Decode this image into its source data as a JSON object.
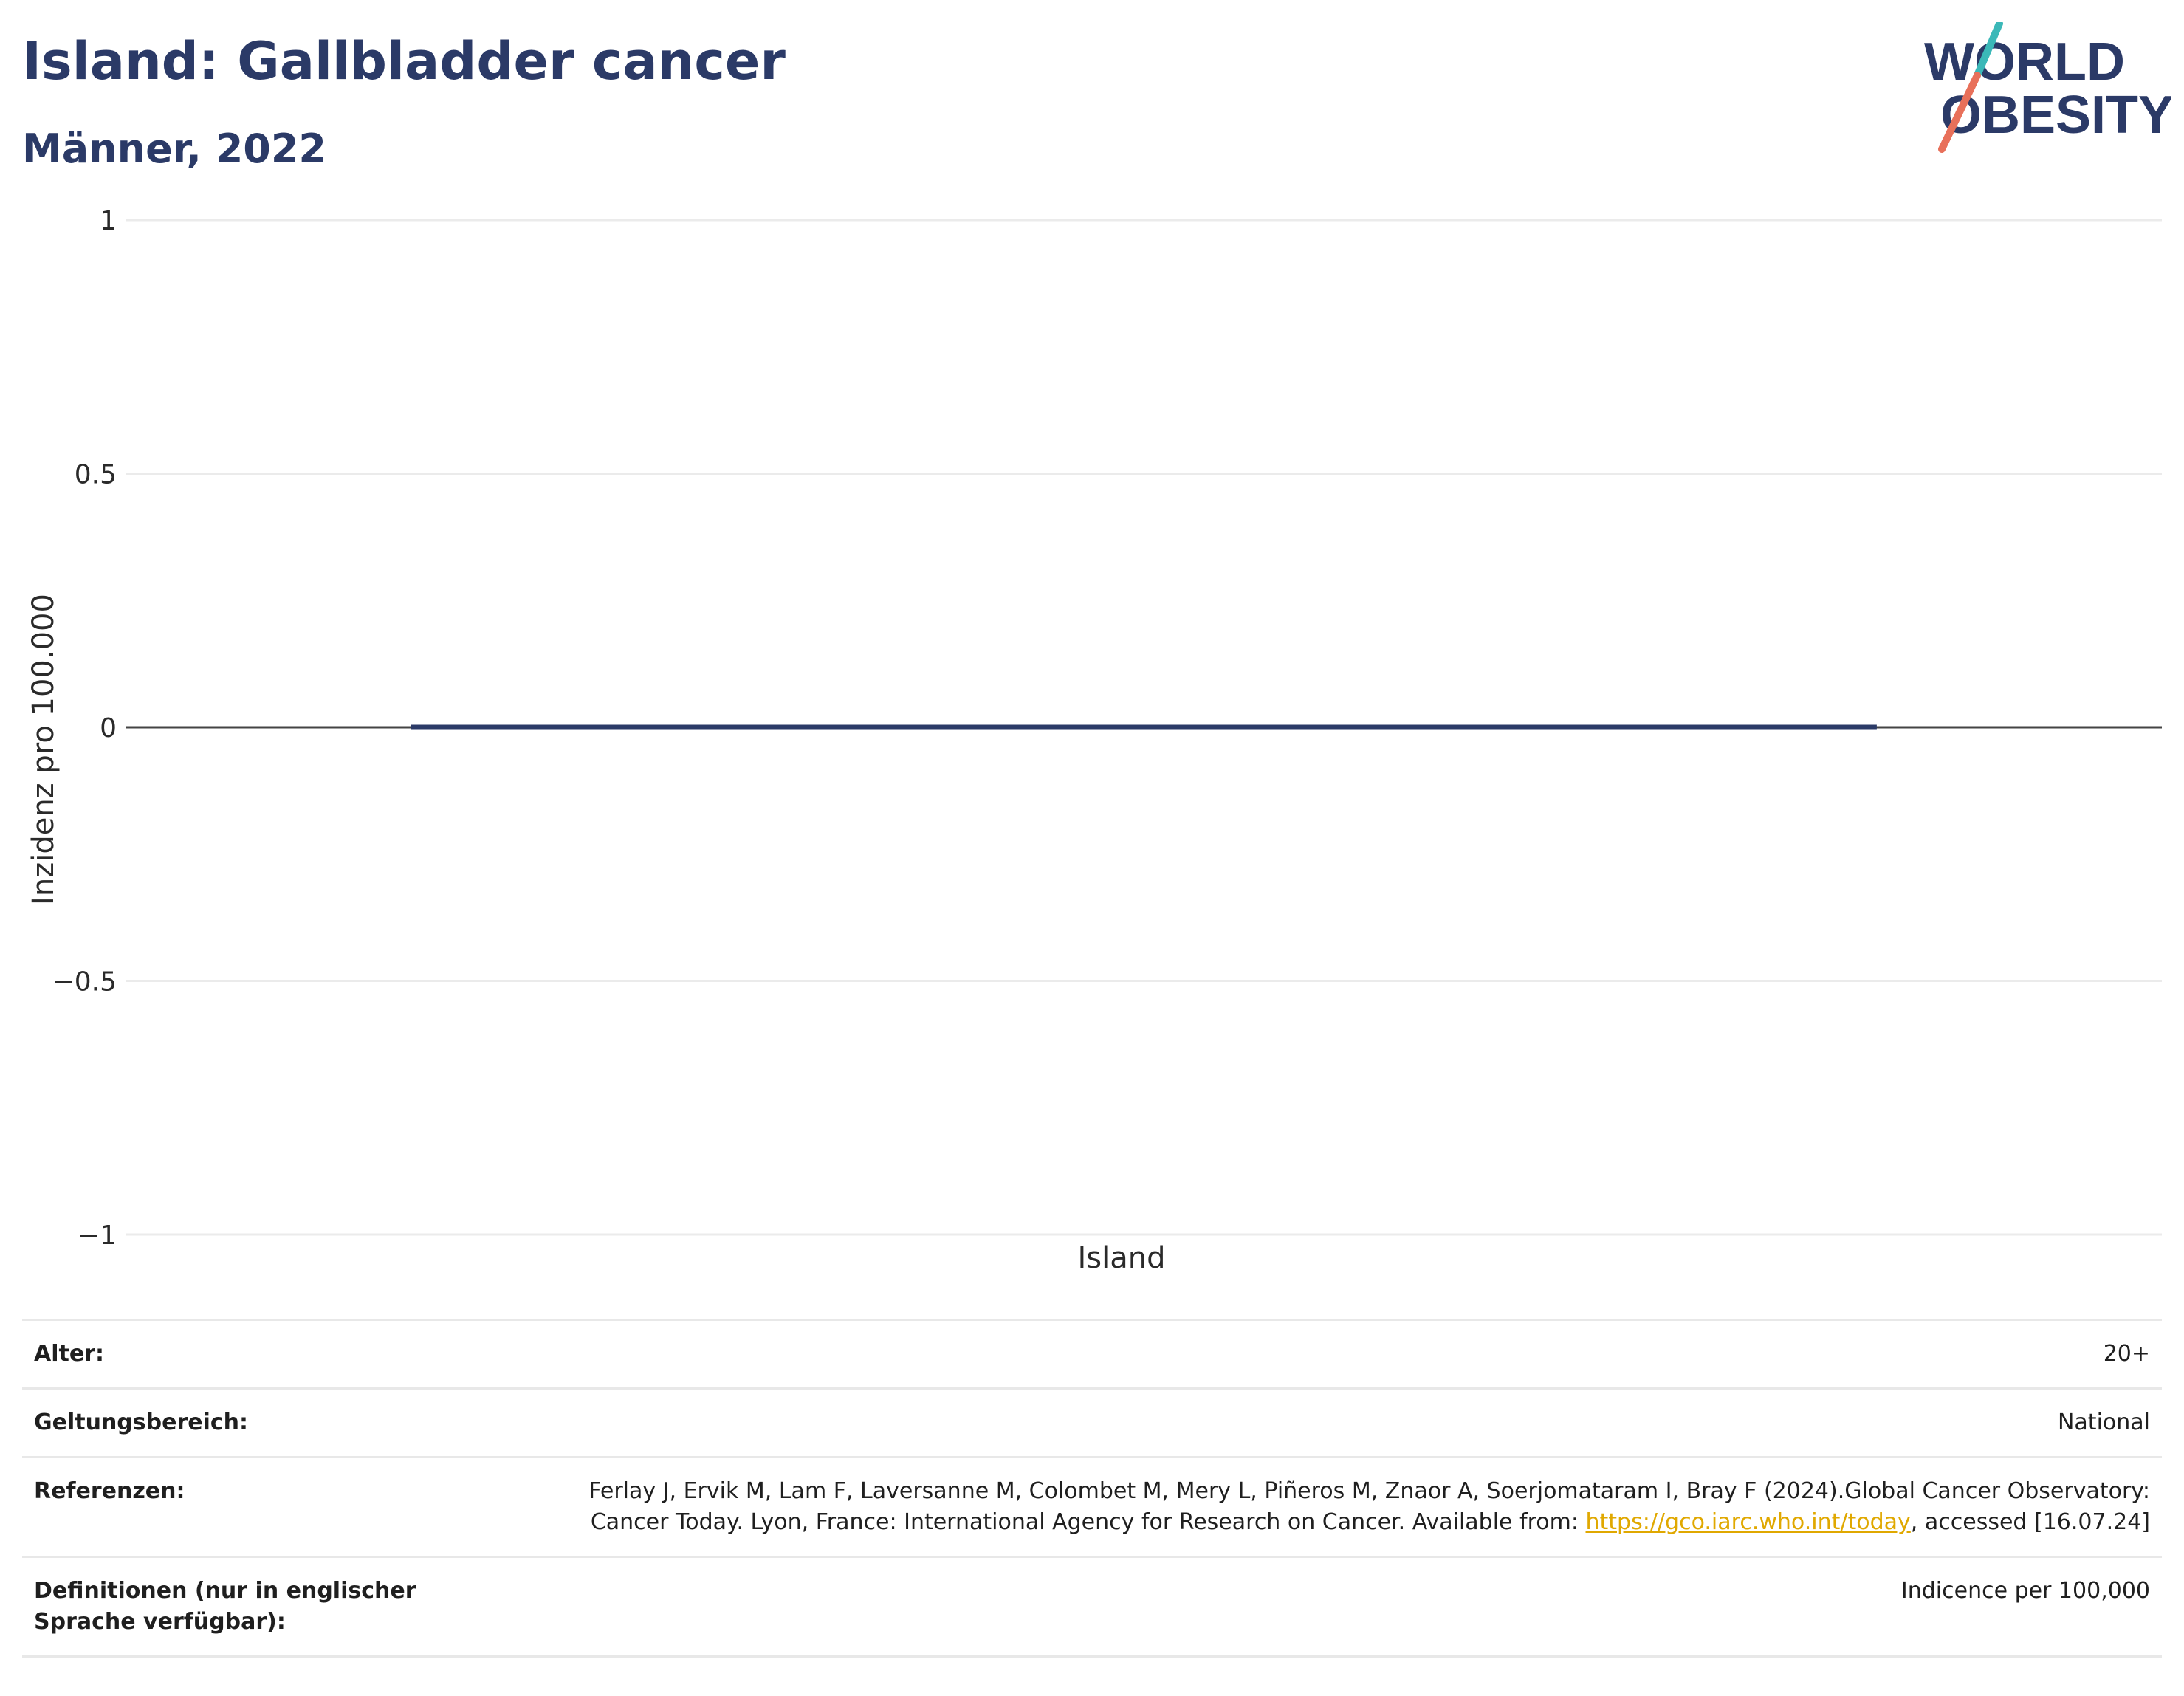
{
  "header": {
    "title": "Island: Gallbladder cancer",
    "subtitle": "Männer, 2022"
  },
  "logo": {
    "line1": "WORLD",
    "line2": "OBESITY",
    "colors": {
      "text": "#2b3a67",
      "slash_top": "#3bb8b8",
      "slash_bottom": "#e8705a"
    }
  },
  "chart_data": {
    "type": "bar",
    "categories": [
      "Island"
    ],
    "series": [
      {
        "values": [
          0
        ]
      }
    ],
    "ylabel": "Inzidenz pro 100.000",
    "xlabel": "",
    "ylim": [
      -1,
      1
    ],
    "yticks": [
      1,
      0.5,
      0,
      -0.5,
      -1
    ],
    "ytick_labels": [
      "1",
      "0.5",
      "0",
      "−0.5",
      "−1"
    ],
    "grid": true,
    "bar_color": "#2b3a67"
  },
  "meta": {
    "rows": [
      {
        "label": "Alter:",
        "value": "20+"
      },
      {
        "label": "Geltungsbereich:",
        "value": "National"
      },
      {
        "label": "Referenzen:",
        "value_before": "Ferlay J, Ervik M, Lam F, Laversanne M, Colombet M, Mery L, Piñeros M, Znaor A, Soerjomataram I, Bray F (2024).Global Cancer Observatory: Cancer Today. Lyon, France: International Agency for Research on Cancer. Available from: ",
        "link": "https://gco.iarc.who.int/today",
        "value_after": ", accessed [16.07.24]"
      },
      {
        "label": "Definitionen (nur in englischer Sprache verfügbar):",
        "value": "Indicence per 100,000"
      }
    ]
  }
}
